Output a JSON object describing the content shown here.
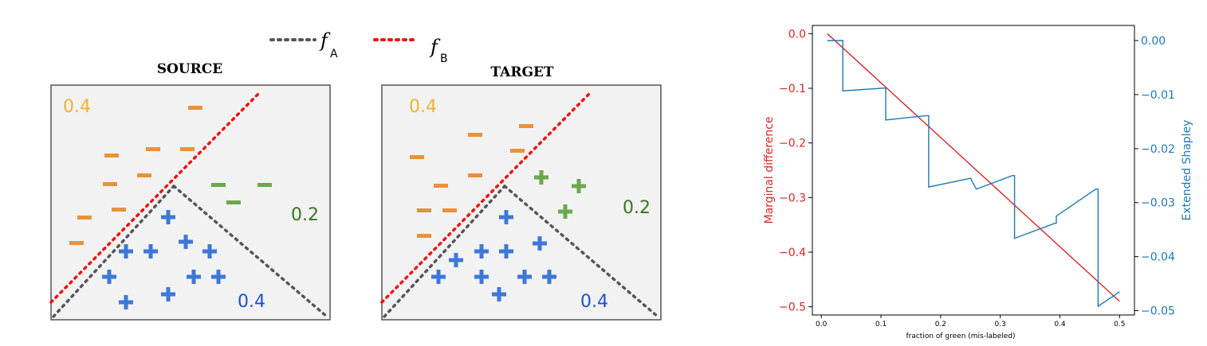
{
  "legend": {
    "items": [
      {
        "f": "f",
        "sub": "A",
        "color": "#555555"
      },
      {
        "f": "f",
        "sub": "B",
        "color": "#ee1111"
      }
    ]
  },
  "panels": [
    {
      "title": "SOURCE",
      "labels": {
        "orange": "0.4",
        "green": "0.2",
        "blue": "0.4"
      }
    },
    {
      "title": "TARGET",
      "labels": {
        "orange": "0.4",
        "green": "0.2",
        "blue": "0.4"
      }
    }
  ],
  "colors": {
    "orange": "#e8923a",
    "orange_text": "#f0b429",
    "green": "#6aa84f",
    "green_text": "#38761d",
    "blue": "#3c78d8",
    "blue_text": "#1f4fd1",
    "line_red": "#d62728",
    "line_blue": "#1f77b4",
    "panel_bg": "#f2f2f2"
  },
  "chart_data": [
    {
      "type": "line",
      "xlabel": "fraction of green (mis-labeled)",
      "x_ticks": [
        "0.0",
        "0.1",
        "0.2",
        "0.3",
        "0.4",
        "0.5"
      ],
      "xlim": [
        -0.015,
        0.525
      ],
      "ylabel_left": "Marginal difference",
      "ylim_left": [
        -0.515,
        0.015
      ],
      "yticks_left": [
        "0.0",
        "−0.1",
        "−0.2",
        "−0.3",
        "−0.4",
        "−0.5"
      ],
      "ylabel_right": "Extended Shapley",
      "ylim_right": [
        -0.0508,
        0.0028
      ],
      "yticks_right": [
        "0.00",
        "−0.01",
        "−0.02",
        "−0.03",
        "−0.04",
        "−0.05"
      ],
      "series": [
        {
          "axis": "left",
          "color": "#d62728",
          "x": [
            0.01,
            0.5
          ],
          "y": [
            0.0,
            -0.49
          ]
        },
        {
          "axis": "right",
          "color": "#1f77b4",
          "x": [
            0.01,
            0.036,
            0.036,
            0.104,
            0.108,
            0.108,
            0.176,
            0.18,
            0.18,
            0.25,
            0.25,
            0.26,
            0.32,
            0.324,
            0.324,
            0.392,
            0.394,
            0.394,
            0.46,
            0.464,
            0.464,
            0.5
          ],
          "y": [
            0.0,
            0.0,
            -0.0093,
            -0.0088,
            -0.0088,
            -0.0147,
            -0.0139,
            -0.0139,
            -0.0271,
            -0.0255,
            -0.0255,
            -0.0275,
            -0.025,
            -0.025,
            -0.0366,
            -0.0338,
            -0.0338,
            -0.0325,
            -0.0275,
            -0.0275,
            -0.0492,
            -0.0465
          ]
        }
      ]
    }
  ]
}
